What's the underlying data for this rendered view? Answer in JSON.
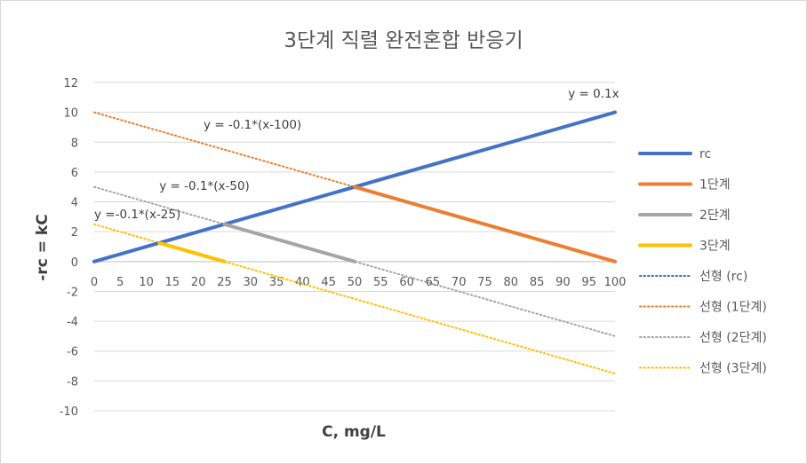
{
  "chart_data": {
    "type": "line",
    "title": "3단계 직렬 완전혼합 반응기",
    "xlabel": "C, mg/L",
    "ylabel": "-rc = kC",
    "xlim": [
      0,
      100
    ],
    "ylim": [
      -10,
      12
    ],
    "x_ticks": [
      0,
      5,
      10,
      15,
      20,
      25,
      30,
      35,
      40,
      45,
      50,
      55,
      60,
      65,
      70,
      75,
      80,
      85,
      90,
      95,
      100
    ],
    "y_ticks": [
      -10,
      -8,
      -6,
      -4,
      -2,
      0,
      2,
      4,
      6,
      8,
      10,
      12
    ],
    "grid": "horizontal",
    "legend_position": "right",
    "series": [
      {
        "name": "rc",
        "style": "solid",
        "color": "#4472c4",
        "x": [
          0,
          100
        ],
        "y": [
          0,
          10
        ]
      },
      {
        "name": "1단계",
        "style": "solid",
        "color": "#ed7d31",
        "x": [
          50,
          100
        ],
        "y": [
          5,
          0
        ]
      },
      {
        "name": "2단계",
        "style": "solid",
        "color": "#a5a5a5",
        "x": [
          25,
          50
        ],
        "y": [
          2.5,
          0
        ]
      },
      {
        "name": "3단계",
        "style": "solid",
        "color": "#ffc000",
        "x": [
          12.5,
          25
        ],
        "y": [
          1.25,
          0
        ]
      },
      {
        "name": "선형 (rc)",
        "style": "dotted",
        "color": "#4472c4",
        "x": [
          0,
          100
        ],
        "y": [
          0,
          10
        ]
      },
      {
        "name": "선형 (1단계)",
        "style": "dotted",
        "color": "#ed7d31",
        "x": [
          0,
          100
        ],
        "y": [
          10,
          0
        ]
      },
      {
        "name": "선형 (2단계)",
        "style": "dotted",
        "color": "#a5a5a5",
        "x": [
          0,
          100
        ],
        "y": [
          5,
          -5
        ]
      },
      {
        "name": "선형 (3단계)",
        "style": "dotted",
        "color": "#ffc000",
        "x": [
          0,
          100
        ],
        "y": [
          2.5,
          -7.5
        ]
      }
    ],
    "annotations": [
      {
        "text": "y = 0.1x",
        "x": 91,
        "y": 11,
        "anchor": "start"
      },
      {
        "text": "y = -0.1*(x-100)",
        "x": 21,
        "y": 8.9,
        "anchor": "start"
      },
      {
        "text": "y = -0.1*(x-50)",
        "x": 12.5,
        "y": 4.8,
        "anchor": "start"
      },
      {
        "text": "y =-0.1*(x-25)",
        "x": 0,
        "y": 2.9,
        "anchor": "start"
      }
    ]
  }
}
